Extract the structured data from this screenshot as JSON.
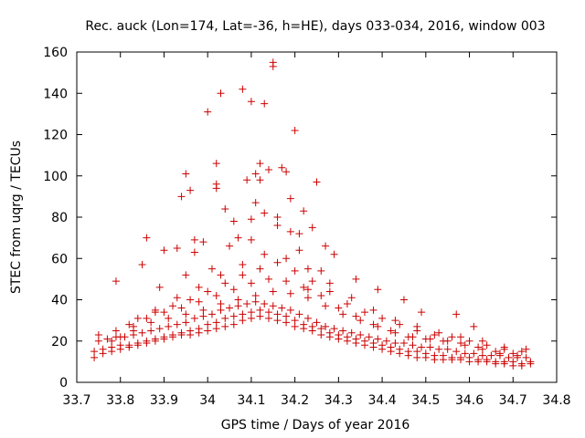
{
  "chart_data": {
    "type": "scatter",
    "title": "Rec. auck (Lon=174, Lat=-36, h=HE), days 033-034, 2016, window 003",
    "xlabel": "GPS time / Days of year 2016",
    "ylabel": "STEC from uqrg / TECUs",
    "xlim": [
      33.7,
      34.8
    ],
    "ylim": [
      0,
      160
    ],
    "xticks": [
      "33.7",
      "33.8",
      "33.9",
      "34",
      "34.1",
      "34.2",
      "34.3",
      "34.4",
      "34.5",
      "34.6",
      "34.7",
      "34.8"
    ],
    "xtick_values": [
      33.7,
      33.8,
      33.9,
      34.0,
      34.1,
      34.2,
      34.3,
      34.4,
      34.5,
      34.6,
      34.7,
      34.8
    ],
    "yticks": [
      "0",
      "20",
      "40",
      "60",
      "80",
      "100",
      "120",
      "140",
      "160"
    ],
    "ytick_values": [
      0,
      20,
      40,
      60,
      80,
      100,
      120,
      140,
      160
    ],
    "grid": false,
    "marker": "plus",
    "color": "#cc0000",
    "x": [
      33.74,
      33.76,
      33.78,
      33.8,
      33.82,
      33.84,
      33.86,
      33.88,
      33.9,
      33.92,
      33.94,
      33.96,
      33.98,
      34.0,
      34.02,
      34.04,
      34.06,
      34.08,
      34.1,
      34.12,
      34.14,
      34.16,
      34.18,
      34.2,
      34.22,
      34.24,
      34.26,
      34.28,
      34.3,
      34.32,
      34.34,
      34.36,
      34.38,
      34.4,
      34.42,
      34.44,
      34.46,
      34.48,
      34.5,
      34.52,
      34.54,
      34.56,
      34.58,
      34.6,
      34.62,
      34.64,
      34.66,
      34.68,
      34.7,
      34.72,
      34.74,
      33.74,
      33.76,
      33.78,
      33.8,
      33.82,
      33.84,
      33.86,
      33.88,
      33.9,
      33.92,
      33.94,
      33.96,
      33.98,
      34.0,
      34.02,
      34.04,
      34.06,
      34.08,
      34.1,
      34.12,
      34.14,
      34.16,
      34.18,
      34.2,
      34.22,
      34.24,
      34.26,
      34.28,
      34.3,
      34.32,
      34.34,
      34.36,
      34.38,
      34.4,
      34.42,
      34.44,
      34.46,
      34.48,
      34.5,
      34.52,
      34.54,
      34.56,
      34.58,
      34.6,
      34.62,
      34.64,
      34.66,
      34.68,
      34.7,
      34.72,
      34.74,
      33.75,
      33.77,
      33.79,
      33.81,
      33.83,
      33.85,
      33.87,
      33.89,
      33.91,
      33.93,
      33.95,
      33.97,
      33.99,
      34.01,
      34.03,
      34.05,
      34.07,
      34.09,
      34.11,
      34.13,
      34.15,
      34.17,
      34.19,
      34.21,
      34.23,
      34.25,
      34.27,
      34.29,
      34.31,
      34.33,
      34.35,
      34.37,
      34.39,
      34.41,
      34.43,
      34.45,
      34.47,
      34.49,
      34.51,
      34.53,
      34.55,
      34.57,
      34.59,
      34.61,
      34.63,
      34.65,
      34.67,
      34.69,
      34.71,
      34.73,
      33.75,
      33.79,
      33.83,
      33.87,
      33.91,
      33.95,
      33.99,
      34.03,
      34.07,
      34.11,
      34.15,
      34.19,
      34.23,
      34.27,
      34.31,
      34.35,
      34.39,
      34.43,
      34.47,
      34.51,
      34.55,
      34.59,
      34.63,
      34.67,
      34.71,
      33.78,
      33.82,
      33.86,
      33.9,
      33.94,
      33.98,
      34.02,
      34.06,
      34.1,
      34.14,
      34.18,
      34.22,
      34.26,
      34.3,
      34.34,
      34.38,
      34.42,
      34.46,
      34.5,
      34.54,
      34.58,
      34.62,
      34.66,
      34.7,
      33.8,
      33.84,
      33.88,
      33.92,
      33.96,
      34.0,
      34.04,
      34.08,
      34.12,
      34.16,
      34.2,
      34.24,
      34.28,
      34.32,
      34.36,
      34.4,
      34.44,
      34.48,
      34.52,
      34.56,
      34.6,
      34.64,
      34.68,
      34.72,
      33.83,
      33.88,
      33.93,
      33.98,
      34.03,
      34.08,
      34.13,
      34.18,
      34.23,
      34.28,
      34.33,
      34.38,
      34.43,
      34.48,
      34.53,
      34.58,
      34.63,
      34.68,
      34.73,
      33.86,
      33.9,
      33.95,
      33.97,
      34.0,
      34.02,
      34.03,
      34.06,
      34.08,
      34.1,
      34.11,
      34.12,
      34.14,
      34.15,
      34.17,
      34.18,
      34.2,
      34.22,
      34.25,
      34.27,
      33.79,
      33.85,
      33.89,
      33.94,
      33.96,
      33.99,
      34.02,
      34.05,
      34.07,
      34.09,
      34.13,
      34.16,
      34.19,
      34.21,
      34.24,
      34.26,
      34.29,
      34.34,
      34.39,
      34.45,
      34.49,
      34.57,
      34.61,
      34.1,
      34.15,
      34.12,
      34.01,
      34.02,
      34.04,
      34.1,
      34.13,
      34.16,
      34.19,
      34.21,
      33.95,
      33.97,
      33.93,
      34.11,
      34.23
    ],
    "y": [
      12,
      14,
      15,
      16,
      17,
      18,
      19,
      20,
      21,
      22,
      23,
      23,
      24,
      25,
      26,
      27,
      28,
      30,
      31,
      32,
      31,
      30,
      29,
      27,
      26,
      25,
      23,
      22,
      21,
      20,
      19,
      18,
      17,
      16,
      15,
      14,
      13,
      12,
      12,
      11,
      11,
      11,
      11,
      10,
      10,
      10,
      9,
      9,
      8,
      8,
      9,
      15,
      16,
      17,
      18,
      18,
      19,
      20,
      21,
      22,
      23,
      24,
      25,
      26,
      28,
      29,
      31,
      32,
      33,
      34,
      35,
      34,
      33,
      32,
      30,
      28,
      27,
      26,
      24,
      23,
      22,
      21,
      20,
      19,
      18,
      17,
      16,
      15,
      15,
      14,
      13,
      13,
      12,
      12,
      12,
      11,
      11,
      10,
      10,
      10,
      9,
      10,
      20,
      21,
      22,
      22,
      23,
      24,
      25,
      26,
      27,
      28,
      29,
      31,
      32,
      33,
      35,
      36,
      37,
      38,
      39,
      38,
      37,
      36,
      35,
      33,
      31,
      29,
      27,
      26,
      25,
      24,
      23,
      22,
      21,
      20,
      19,
      19,
      18,
      17,
      17,
      16,
      16,
      15,
      14,
      14,
      13,
      13,
      13,
      12,
      12,
      12,
      23,
      25,
      27,
      29,
      31,
      33,
      35,
      38,
      40,
      42,
      44,
      43,
      41,
      37,
      33,
      30,
      27,
      24,
      22,
      21,
      20,
      18,
      16,
      14,
      13,
      20,
      28,
      31,
      34,
      36,
      39,
      42,
      45,
      48,
      50,
      49,
      46,
      42,
      36,
      32,
      28,
      25,
      22,
      21,
      20,
      19,
      17,
      15,
      14,
      22,
      31,
      35,
      37,
      40,
      44,
      48,
      52,
      55,
      58,
      54,
      49,
      44,
      38,
      34,
      31,
      28,
      25,
      23,
      22,
      20,
      18,
      16,
      15,
      25,
      34,
      41,
      46,
      52,
      57,
      62,
      60,
      55,
      48,
      41,
      35,
      30,
      27,
      24,
      22,
      20,
      17,
      16,
      70,
      64,
      101,
      69,
      131,
      106,
      140,
      78,
      142,
      136,
      101,
      106,
      103,
      153,
      104,
      102,
      122,
      83,
      97,
      66,
      49,
      57,
      46,
      90,
      93,
      68,
      96,
      66,
      70,
      98,
      135,
      80,
      89,
      64,
      75,
      54,
      62,
      50,
      45,
      40,
      34,
      33,
      27,
      79,
      155,
      98,
      55,
      94,
      84,
      69,
      82,
      76,
      73,
      72,
      52,
      63,
      65,
      87,
      45
    ],
    "x_extra_note": ""
  }
}
